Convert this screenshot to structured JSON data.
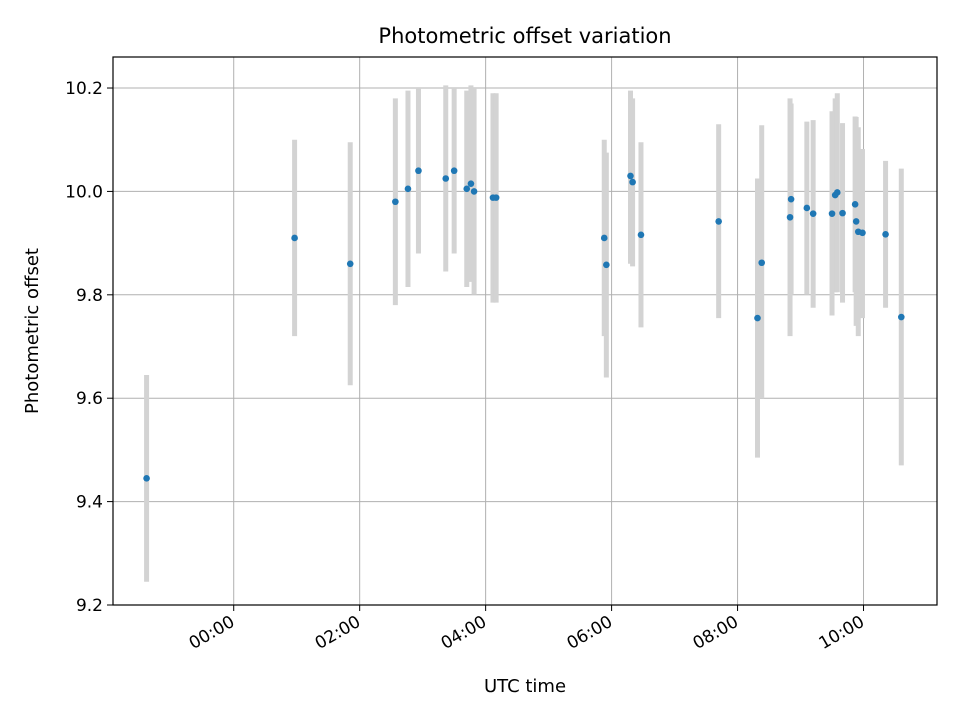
{
  "chart_data": {
    "type": "scatter",
    "title": "Photometric offset variation",
    "xlabel": "UTC time",
    "ylabel": "Photometric offset",
    "grid": true,
    "xlim": [
      "-1:55",
      "11:10"
    ],
    "ylim": [
      9.2,
      10.26
    ],
    "x_ticks": [
      "00:00",
      "02:00",
      "04:00",
      "06:00",
      "08:00",
      "10:00"
    ],
    "y_ticks": [
      "9.2",
      "9.4",
      "9.6",
      "9.8",
      "10.0",
      "10.2"
    ],
    "marker_color": "#1f77b4",
    "errorbar_color": "#d3d3d3",
    "points": [
      {
        "time": "-1:23",
        "y": 9.445,
        "lo": 9.245,
        "hi": 9.645
      },
      {
        "time": "00:58",
        "y": 9.91,
        "lo": 9.72,
        "hi": 10.1
      },
      {
        "time": "01:51",
        "y": 9.86,
        "lo": 9.625,
        "hi": 10.095
      },
      {
        "time": "02:34",
        "y": 9.98,
        "lo": 9.78,
        "hi": 10.18
      },
      {
        "time": "02:46",
        "y": 10.005,
        "lo": 9.815,
        "hi": 10.195
      },
      {
        "time": "02:56",
        "y": 10.04,
        "lo": 9.88,
        "hi": 10.2
      },
      {
        "time": "03:22",
        "y": 10.025,
        "lo": 9.845,
        "hi": 10.205
      },
      {
        "time": "03:30",
        "y": 10.04,
        "lo": 9.88,
        "hi": 10.2
      },
      {
        "time": "03:42",
        "y": 10.005,
        "lo": 9.815,
        "hi": 10.195
      },
      {
        "time": "03:46",
        "y": 10.015,
        "lo": 9.825,
        "hi": 10.205
      },
      {
        "time": "03:49",
        "y": 10.0,
        "lo": 9.8,
        "hi": 10.2
      },
      {
        "time": "04:07",
        "y": 9.988,
        "lo": 9.785,
        "hi": 10.19
      },
      {
        "time": "04:10",
        "y": 9.988,
        "lo": 9.785,
        "hi": 10.19
      },
      {
        "time": "05:53",
        "y": 9.91,
        "lo": 9.72,
        "hi": 10.1
      },
      {
        "time": "05:55",
        "y": 9.858,
        "lo": 9.64,
        "hi": 10.075
      },
      {
        "time": "06:18",
        "y": 10.03,
        "lo": 9.86,
        "hi": 10.195
      },
      {
        "time": "06:20",
        "y": 10.018,
        "lo": 9.855,
        "hi": 10.18
      },
      {
        "time": "06:28",
        "y": 9.916,
        "lo": 9.737,
        "hi": 10.095
      },
      {
        "time": "07:42",
        "y": 9.942,
        "lo": 9.755,
        "hi": 10.13
      },
      {
        "time": "08:19",
        "y": 9.755,
        "lo": 9.485,
        "hi": 10.025
      },
      {
        "time": "08:23",
        "y": 9.862,
        "lo": 9.6,
        "hi": 10.128
      },
      {
        "time": "08:50",
        "y": 9.95,
        "lo": 9.72,
        "hi": 10.18
      },
      {
        "time": "08:51",
        "y": 9.985,
        "lo": 9.8,
        "hi": 10.17
      },
      {
        "time": "09:06",
        "y": 9.968,
        "lo": 9.8,
        "hi": 10.135
      },
      {
        "time": "09:12",
        "y": 9.957,
        "lo": 9.775,
        "hi": 10.138
      },
      {
        "time": "09:30",
        "y": 9.957,
        "lo": 9.76,
        "hi": 10.155
      },
      {
        "time": "09:33",
        "y": 9.993,
        "lo": 9.805,
        "hi": 10.18
      },
      {
        "time": "09:35",
        "y": 9.998,
        "lo": 9.805,
        "hi": 10.19
      },
      {
        "time": "09:40",
        "y": 9.958,
        "lo": 9.785,
        "hi": 10.132
      },
      {
        "time": "09:52",
        "y": 9.975,
        "lo": 9.805,
        "hi": 10.145
      },
      {
        "time": "09:53",
        "y": 9.942,
        "lo": 9.74,
        "hi": 10.144
      },
      {
        "time": "09:55",
        "y": 9.922,
        "lo": 9.72,
        "hi": 10.124
      },
      {
        "time": "09:59",
        "y": 9.92,
        "lo": 9.755,
        "hi": 10.082
      },
      {
        "time": "10:21",
        "y": 9.917,
        "lo": 9.775,
        "hi": 10.059
      },
      {
        "time": "10:36",
        "y": 9.757,
        "lo": 9.47,
        "hi": 10.044
      }
    ]
  }
}
